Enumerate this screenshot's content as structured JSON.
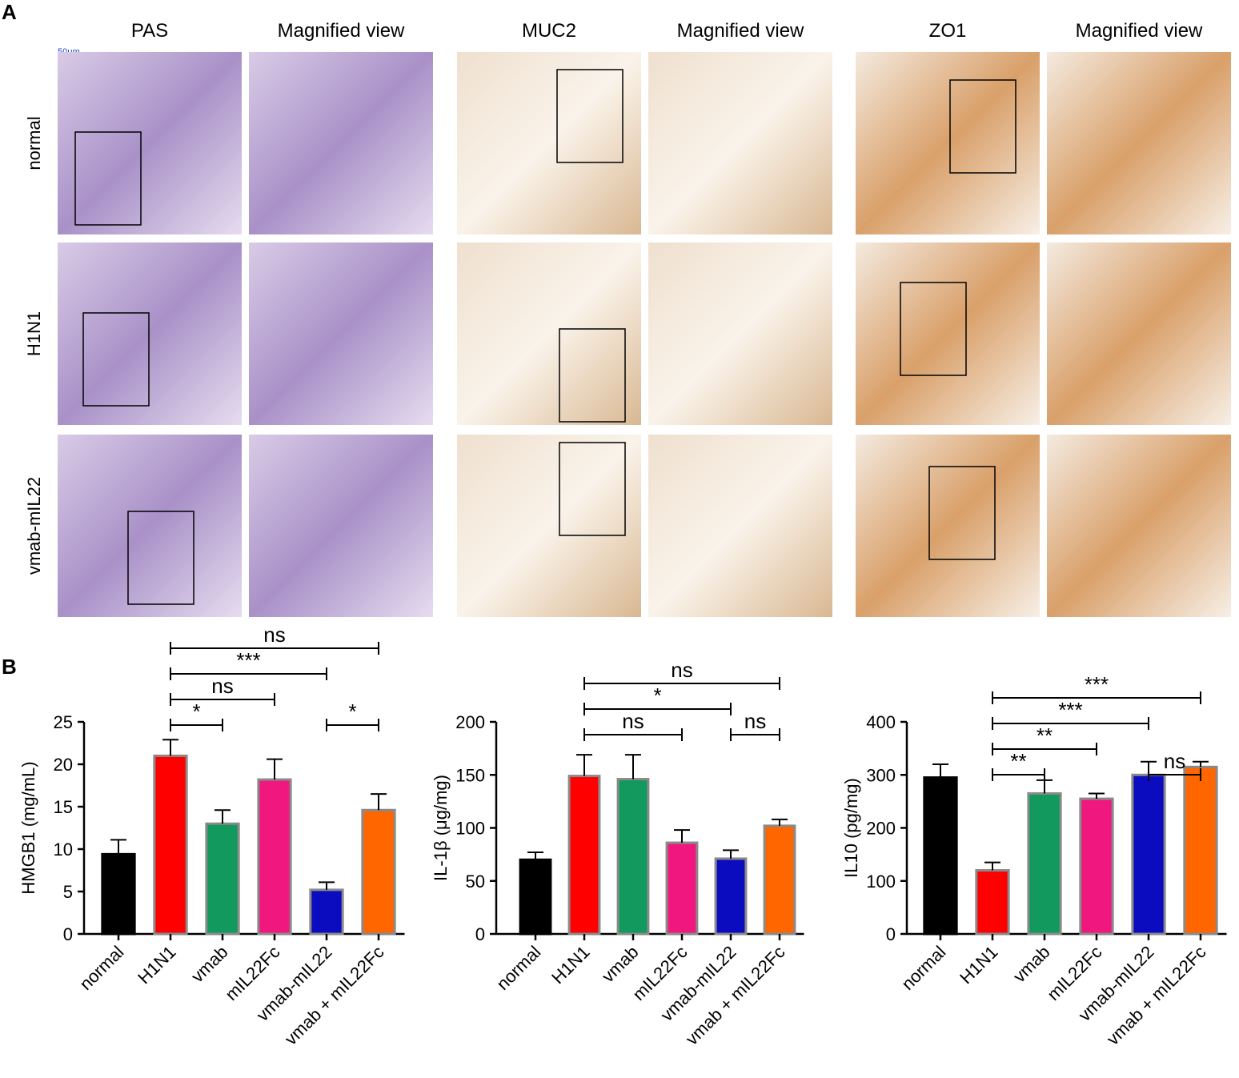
{
  "panel_labels": [
    "A",
    "B"
  ],
  "panel_a": {
    "columns": [
      "PAS",
      "Magnified view",
      "MUC2",
      "Magnified view",
      "ZO1",
      "Magnified view"
    ],
    "rows": [
      "normal",
      "H1N1",
      "vmab-mIL22"
    ],
    "scale_bar": "50μm"
  },
  "chart_data": [
    {
      "type": "bar",
      "y_label": "HMGB1 (mg/mL)",
      "categories": [
        "normal",
        "H1N1",
        "vmab",
        "mIL22Fc",
        "vmab-mIL22",
        "vmab + mIL22Fc"
      ],
      "values": [
        9.4,
        21,
        13,
        18.2,
        5.2,
        14.6
      ],
      "errors": [
        1.7,
        1.9,
        1.6,
        2.4,
        0.9,
        1.9
      ],
      "colors": [
        "#000000",
        "#ff0000",
        "#12995e",
        "#f0177e",
        "#0b0bbf",
        "#ff6600"
      ],
      "ylim": [
        0,
        25
      ],
      "yticks": [
        0,
        5,
        10,
        15,
        20,
        25
      ],
      "comparisons": [
        {
          "from": "H1N1",
          "to": "vmab",
          "label": "*"
        },
        {
          "from": "vmab-mIL22",
          "to": "vmab + mIL22Fc",
          "label": "*"
        },
        {
          "from": "H1N1",
          "to": "mIL22Fc",
          "label": "ns"
        },
        {
          "from": "H1N1",
          "to": "vmab-mIL22",
          "label": "***"
        },
        {
          "from": "H1N1",
          "to": "vmab + mIL22Fc",
          "label": "ns"
        }
      ]
    },
    {
      "type": "bar",
      "y_label": "IL-1β (μg/mg)",
      "categories": [
        "normal",
        "H1N1",
        "vmab",
        "mIL22Fc",
        "vmab-mIL22",
        "vmab + mIL22Fc"
      ],
      "values": [
        70,
        149,
        146,
        86,
        71,
        102
      ],
      "errors": [
        7,
        20,
        23,
        12,
        8,
        6
      ],
      "colors": [
        "#000000",
        "#ff0000",
        "#12995e",
        "#f0177e",
        "#0b0bbf",
        "#ff6600"
      ],
      "ylim": [
        0,
        200
      ],
      "yticks": [
        0,
        50,
        100,
        150,
        200
      ],
      "comparisons": [
        {
          "from": "H1N1",
          "to": "mIL22Fc",
          "label": "ns"
        },
        {
          "from": "vmab-mIL22",
          "to": "vmab + mIL22Fc",
          "label": "ns"
        },
        {
          "from": "H1N1",
          "to": "vmab-mIL22",
          "label": "*"
        },
        {
          "from": "H1N1",
          "to": "vmab + mIL22Fc",
          "label": "ns"
        }
      ]
    },
    {
      "type": "bar",
      "y_label": "IL10 (pg/mg)",
      "categories": [
        "normal",
        "H1N1",
        "vmab",
        "mIL22Fc",
        "vmab-mIL22",
        "vmab + mIL22Fc"
      ],
      "values": [
        295,
        120,
        265,
        255,
        300,
        315
      ],
      "errors": [
        25,
        15,
        25,
        10,
        25,
        10
      ],
      "colors": [
        "#000000",
        "#ff0000",
        "#12995e",
        "#f0177e",
        "#0b0bbf",
        "#ff6600"
      ],
      "ylim": [
        0,
        400
      ],
      "yticks": [
        0,
        100,
        200,
        300,
        400
      ],
      "comparisons": [
        {
          "from": "H1N1",
          "to": "vmab",
          "label": "**"
        },
        {
          "from": "H1N1",
          "to": "mIL22Fc",
          "label": "**"
        },
        {
          "from": "vmab-mIL22",
          "to": "vmab + mIL22Fc",
          "label": "ns"
        },
        {
          "from": "H1N1",
          "to": "vmab-mIL22",
          "label": "***"
        },
        {
          "from": "H1N1",
          "to": "vmab + mIL22Fc",
          "label": "***"
        }
      ]
    }
  ]
}
